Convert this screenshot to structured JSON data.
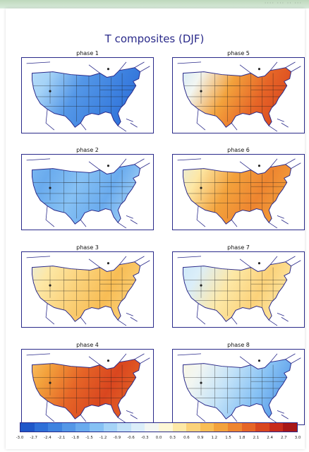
{
  "figure": {
    "title": "T composites (DJF)"
  },
  "top_strip_text": "···· ··· ·· ···",
  "panels": [
    {
      "title": "phase 1",
      "palette": "cool"
    },
    {
      "title": "phase 5",
      "palette": "warm-east"
    },
    {
      "title": "phase 2",
      "palette": "cool-all"
    },
    {
      "title": "phase 6",
      "palette": "warm-center"
    },
    {
      "title": "phase 3",
      "palette": "mild-warm"
    },
    {
      "title": "phase 7",
      "palette": "mild-cool-west"
    },
    {
      "title": "phase 4",
      "palette": "hot-east"
    },
    {
      "title": "phase 8",
      "palette": "cool-east"
    }
  ],
  "colorbar": {
    "labels": [
      "-3.0",
      "-2.7",
      "-2.4",
      "-2.1",
      "-1.8",
      "-1.5",
      "-1.2",
      "-0.9",
      "-0.6",
      "-0.3",
      "0.0",
      "0.3",
      "0.6",
      "0.9",
      "1.2",
      "1.5",
      "1.8",
      "2.1",
      "2.4",
      "2.7",
      "3.0"
    ],
    "colors": [
      "#1f57c9",
      "#2e6fd8",
      "#3f83e0",
      "#5497e7",
      "#6aabee",
      "#86c1f4",
      "#a5d3f7",
      "#c2e2f8",
      "#dbeef9",
      "#f2f6f2",
      "#fdf7d6",
      "#fde8a6",
      "#fbd27a",
      "#f8bd55",
      "#f3a23c",
      "#ee8530",
      "#e66527",
      "#d9461f",
      "#c72a1c",
      "#a81717"
    ]
  },
  "colors": {
    "border": "#2a2a8a",
    "state_lines": "#1a1a1a"
  }
}
